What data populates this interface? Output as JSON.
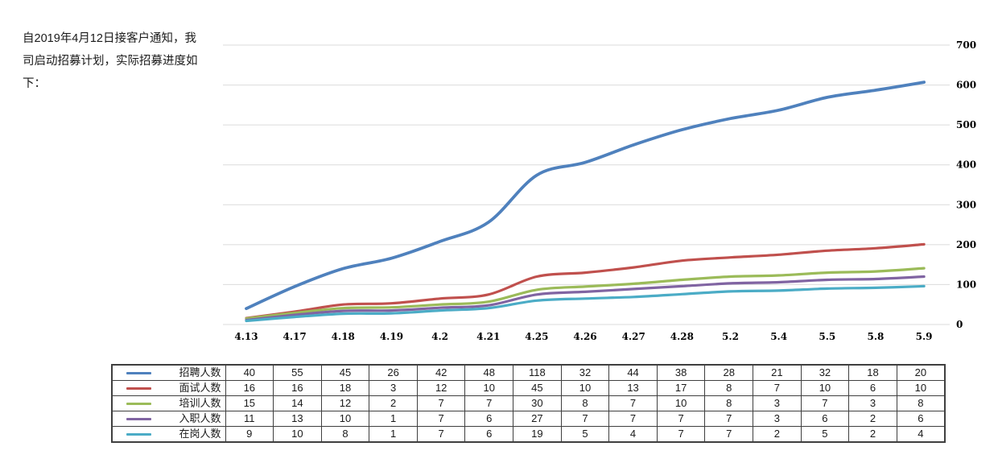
{
  "note": {
    "lines": [
      "自2019年4月12日接客户通知，我",
      "司启动招募计划，实际招募进度如",
      "下："
    ]
  },
  "chart_data": {
    "type": "line",
    "title": "",
    "xlabel": "",
    "ylabel": "",
    "categories": [
      "4.13",
      "4.17",
      "4.18",
      "4.19",
      "4.2",
      "4.21",
      "4.25",
      "4.26",
      "4.27",
      "4.28",
      "5.2",
      "5.4",
      "5.5",
      "5.8",
      "5.9"
    ],
    "yticks": [
      0,
      100,
      200,
      300,
      400,
      500,
      600,
      700
    ],
    "ylim": [
      0,
      700
    ],
    "y_axis_side": "right",
    "grid": true,
    "smooth": true,
    "gridline_color": "#DBDBDB",
    "legend_position": "table-left-column",
    "series": [
      {
        "name": "招聘人数",
        "color": "#4F81BD",
        "values": [
          40,
          55,
          45,
          26,
          42,
          48,
          118,
          32,
          44,
          38,
          28,
          21,
          32,
          18,
          20
        ],
        "cumulative": [
          40,
          95,
          140,
          166,
          208,
          256,
          374,
          406,
          450,
          488,
          516,
          537,
          569,
          587,
          607
        ]
      },
      {
        "name": "面试人数",
        "color": "#C0504D",
        "values": [
          16,
          16,
          18,
          3,
          12,
          10,
          45,
          10,
          13,
          17,
          8,
          7,
          10,
          6,
          10
        ],
        "cumulative": [
          16,
          32,
          50,
          53,
          65,
          75,
          120,
          130,
          143,
          160,
          168,
          175,
          185,
          191,
          201
        ]
      },
      {
        "name": "培训人数",
        "color": "#9BBB59",
        "values": [
          15,
          14,
          12,
          2,
          7,
          7,
          30,
          8,
          7,
          10,
          8,
          3,
          7,
          3,
          8
        ],
        "cumulative": [
          15,
          29,
          41,
          43,
          50,
          57,
          87,
          95,
          102,
          112,
          120,
          123,
          130,
          133,
          141
        ]
      },
      {
        "name": "入职人数",
        "color": "#8064A2",
        "values": [
          11,
          13,
          10,
          1,
          7,
          6,
          27,
          7,
          7,
          7,
          7,
          3,
          6,
          2,
          6
        ],
        "cumulative": [
          11,
          24,
          34,
          35,
          42,
          48,
          75,
          82,
          89,
          96,
          103,
          106,
          112,
          114,
          120
        ]
      },
      {
        "name": "在岗人数",
        "color": "#4BACC6",
        "values": [
          9,
          10,
          8,
          1,
          7,
          6,
          19,
          5,
          4,
          7,
          7,
          2,
          5,
          2,
          4
        ],
        "cumulative": [
          9,
          19,
          27,
          28,
          35,
          41,
          60,
          65,
          69,
          76,
          83,
          85,
          90,
          92,
          96
        ]
      }
    ]
  }
}
